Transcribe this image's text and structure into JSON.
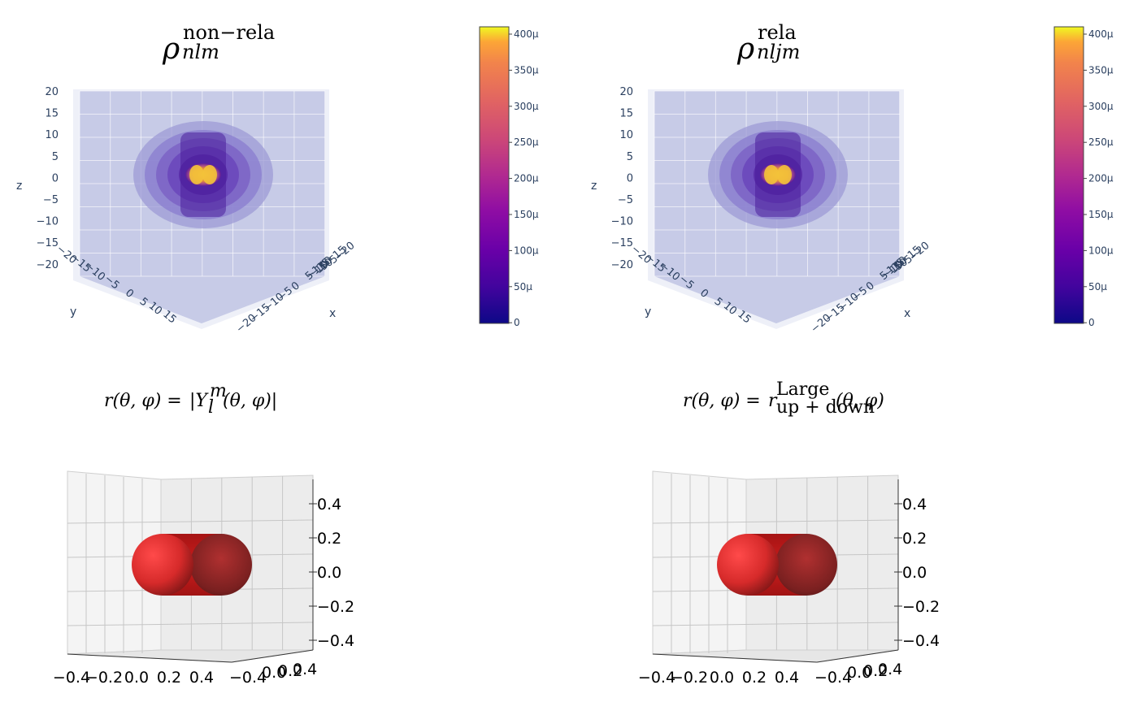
{
  "chart_data": [
    {
      "type": "heatmap",
      "id": "nonrela",
      "title_symbol": "ρ",
      "title_sup": "non−rela",
      "title_sub": "nlm",
      "xlabel": "x",
      "ylabel": "y",
      "zlabel": "z",
      "z_ticks": [
        "20",
        "15",
        "10",
        "5",
        "0",
        "−5",
        "−10",
        "−15",
        "−20"
      ],
      "y_ticks": [
        "−20",
        "−15",
        "−10",
        "−5",
        "0",
        "5",
        "10",
        "15"
      ],
      "x_ticks": [
        "−20",
        "−15",
        "−10",
        "−5",
        "0",
        "5",
        "10",
        "15"
      ],
      "x_ticks_top": [
        "−1",
        "−15",
        "10",
        "5",
        "0",
        "5",
        "−20"
      ],
      "colorbar": {
        "ticks": [
          "400μ",
          "350μ",
          "300μ",
          "250μ",
          "200μ",
          "150μ",
          "100μ",
          "50μ",
          "0"
        ],
        "range": [
          0,
          0.0004
        ]
      },
      "colors": {
        "low": "#0d0887",
        "mid": "#cc4778",
        "high": "#f0f921"
      }
    },
    {
      "type": "heatmap",
      "id": "rela",
      "title_symbol": "ρ",
      "title_sup": "rela",
      "title_sub": "nljm",
      "xlabel": "x",
      "ylabel": "y",
      "zlabel": "z",
      "z_ticks": [
        "20",
        "15",
        "10",
        "5",
        "0",
        "−5",
        "−10",
        "−15",
        "−20"
      ],
      "y_ticks": [
        "−20",
        "−15",
        "−10",
        "−5",
        "0",
        "5",
        "10",
        "15"
      ],
      "x_ticks": [
        "−20",
        "−15",
        "−10",
        "−5",
        "0",
        "5",
        "10",
        "15"
      ],
      "x_ticks_top": [
        "−1",
        "−15",
        "10",
        "5",
        "0",
        "5",
        "−20"
      ],
      "colorbar": {
        "ticks": [
          "400μ",
          "350μ",
          "300μ",
          "250μ",
          "200μ",
          "150μ",
          "100μ",
          "50μ",
          "0"
        ],
        "range": [
          0,
          0.0004
        ]
      },
      "colors": {
        "low": "#0d0887",
        "mid": "#cc4778",
        "high": "#f0f921"
      }
    },
    {
      "type": "scatter",
      "id": "ylm",
      "equation_lhs": "r(θ, φ) =",
      "equation_rhs": "|Y",
      "equation_sup": "m",
      "equation_sub": "l",
      "equation_tail": "(θ, φ)|",
      "z_ticks": [
        "0.4",
        "0.2",
        "0.0",
        "−0.2",
        "−0.4"
      ],
      "x_ticks": [
        "−0.4",
        "−0.2",
        "0.0",
        "0.2",
        "0.4"
      ],
      "y_ticks_overlap": "−0.4",
      "y_ticks_overlap2": "0.0",
      "y_ticks_overlap3": "0.2",
      "y_ticks_overlap4": "0.4",
      "surface_color": "#d42020"
    },
    {
      "type": "scatter",
      "id": "large",
      "equation_lhs": "r(θ, φ) =",
      "equation_rhs": "r",
      "equation_sup": "Large",
      "equation_sub": "up + down",
      "equation_tail": "(θ, φ)",
      "z_ticks": [
        "0.4",
        "0.2",
        "0.0",
        "−0.2",
        "−0.4"
      ],
      "x_ticks": [
        "−0.4",
        "−0.2",
        "0.0",
        "0.2",
        "0.4"
      ],
      "y_ticks_overlap": "−0.4",
      "y_ticks_overlap2": "0.0",
      "y_ticks_overlap3": "0.2",
      "y_ticks_overlap4": "0.4",
      "surface_color": "#d42020"
    }
  ]
}
